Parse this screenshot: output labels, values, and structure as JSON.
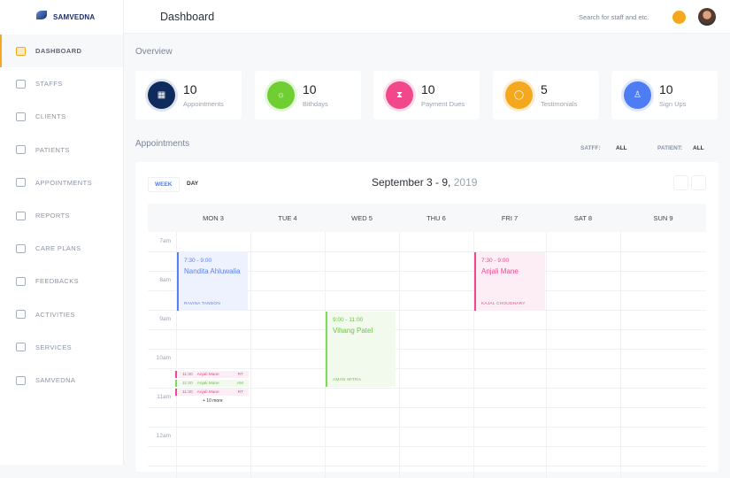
{
  "brand": "SAMVEDNA",
  "header": {
    "title": "Dashboard",
    "search_placeholder": "Search for staff and etc."
  },
  "sidebar": {
    "items": [
      {
        "label": "DASHBOARD",
        "icon": "bar-chart-icon",
        "active": true
      },
      {
        "label": "STAFFS",
        "icon": "id-card-icon"
      },
      {
        "label": "CLIENTS",
        "icon": "book-icon"
      },
      {
        "label": "PATIENTS",
        "icon": "users-icon"
      },
      {
        "label": "APPOINTMENTS",
        "icon": "calendar-icon"
      },
      {
        "label": "REPORTS",
        "icon": "document-icon"
      },
      {
        "label": "CARE PLANS",
        "icon": "map-icon"
      },
      {
        "label": "FEEDBACKS",
        "icon": "chat-bubble-icon"
      },
      {
        "label": "ACTIVITIES",
        "icon": "heart-pulse-icon"
      },
      {
        "label": "SERVICES",
        "icon": "store-icon"
      },
      {
        "label": "SAMVEDNA",
        "icon": "briefcase-icon"
      }
    ]
  },
  "overview": {
    "title": "Overview",
    "cards": [
      {
        "value": "10",
        "label": "Appointments",
        "color": "#0f2a5c",
        "ring": "#dfe3ec",
        "icon": "calendar-icon"
      },
      {
        "value": "10",
        "label": "Bithdays",
        "color": "#6fcf32",
        "ring": "#e4f6da",
        "icon": "sun-icon"
      },
      {
        "value": "10",
        "label": "Payment Dues",
        "color": "#f2478a",
        "ring": "#fde0ec",
        "icon": "hourglass-icon"
      },
      {
        "value": "5",
        "label": "Testimonials",
        "color": "#f4a81d",
        "ring": "#fdeed2",
        "icon": "chat-bubble-icon"
      },
      {
        "value": "10",
        "label": "Sign Ups",
        "color": "#4d7cf3",
        "ring": "#dfe7fd",
        "icon": "user-icon"
      }
    ]
  },
  "appointments": {
    "title": "Appointments",
    "staff_label": "SATFF:",
    "staff_value": "ALL",
    "patient_label": "PATIENT:",
    "patient_value": "ALL",
    "tabs": {
      "week": "WEEK",
      "day": "DAY"
    },
    "range": "September 3 - 9,",
    "year": "2019",
    "days": [
      "MON 3",
      "TUE 4",
      "WED 5",
      "THU 6",
      "FRI 7",
      "SAT 8",
      "SUN 9"
    ],
    "times": [
      "7am",
      "8am",
      "9am",
      "10am",
      "11am",
      "12am"
    ],
    "events": [
      {
        "time": "7:30 - 9:00",
        "name": "Nandita Ahluwalia",
        "staff": "RAVINA TANDON",
        "color": "blue"
      },
      {
        "time": "9:00 - 11:00",
        "name": "Vihang Patel",
        "staff": "AMAN MITRA",
        "color": "green"
      },
      {
        "time": "7:30 - 9:00",
        "name": "Anjali Mane",
        "staff": "KAJAL CHOUDHARY",
        "color": "pink"
      }
    ],
    "mini_events": [
      {
        "time": "11:30",
        "name": "Anjali Mane",
        "tag": "RT",
        "color": "pink"
      },
      {
        "time": "11:30",
        "name": "Anjali Mane",
        "tag": "AM",
        "color": "green"
      },
      {
        "time": "11:30",
        "name": "Anjali Mane",
        "tag": "RT",
        "color": "pink"
      }
    ],
    "more": "+ 10 more"
  }
}
